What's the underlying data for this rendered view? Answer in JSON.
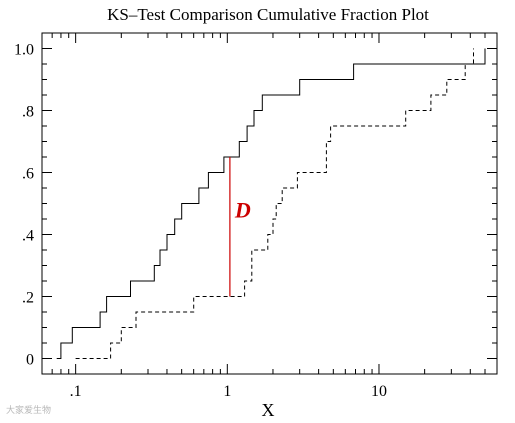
{
  "chart_data": {
    "type": "line",
    "title": "KS–Test Comparison Cumulative Fraction Plot",
    "xlabel": "X",
    "ylabel": "",
    "x_scale": "log",
    "xlim": [
      0.06,
      60
    ],
    "ylim": [
      -0.05,
      1.05
    ],
    "x_ticks": [
      {
        "value": 0.1,
        "label": ".1"
      },
      {
        "value": 1,
        "label": "1"
      },
      {
        "value": 10,
        "label": "10"
      }
    ],
    "y_ticks": [
      {
        "value": 0,
        "label": "0"
      },
      {
        "value": 0.2,
        "label": ".2"
      },
      {
        "value": 0.4,
        "label": ".4"
      },
      {
        "value": 0.6,
        "label": ".6"
      },
      {
        "value": 0.8,
        "label": ".8"
      },
      {
        "value": 1.0,
        "label": "1.0"
      }
    ],
    "grid": false,
    "series": [
      {
        "style": "solid",
        "color": "#000000",
        "x": [
          0.075,
          0.08,
          0.095,
          0.145,
          0.16,
          0.23,
          0.33,
          0.36,
          0.4,
          0.45,
          0.5,
          0.65,
          0.75,
          0.95,
          1.2,
          1.35,
          1.5,
          1.7,
          3.0,
          6.8,
          38,
          50
        ],
        "y": [
          0.0,
          0.05,
          0.1,
          0.15,
          0.2,
          0.25,
          0.3,
          0.35,
          0.4,
          0.45,
          0.5,
          0.55,
          0.6,
          0.65,
          0.7,
          0.75,
          0.8,
          0.85,
          0.9,
          0.95,
          0.95,
          1.0
        ]
      },
      {
        "style": "dashed",
        "color": "#000000",
        "x": [
          0.1,
          0.17,
          0.2,
          0.25,
          0.5,
          0.6,
          1.25,
          1.3,
          1.45,
          1.85,
          2.0,
          2.1,
          2.3,
          2.9,
          4.5,
          4.8,
          15,
          22,
          28,
          37,
          42
        ],
        "y": [
          0.0,
          0.05,
          0.1,
          0.15,
          0.15,
          0.2,
          0.2,
          0.25,
          0.35,
          0.4,
          0.45,
          0.5,
          0.55,
          0.6,
          0.7,
          0.75,
          0.8,
          0.85,
          0.9,
          0.95,
          1.0
        ]
      }
    ],
    "annotations": [
      {
        "text": "D",
        "x": 1.04,
        "y": 0.48,
        "color": "#cc0000",
        "marks_segment": {
          "x": 1.04,
          "y_from": 0.2,
          "y_to": 0.65
        }
      }
    ]
  },
  "watermark": "大家爱生物"
}
